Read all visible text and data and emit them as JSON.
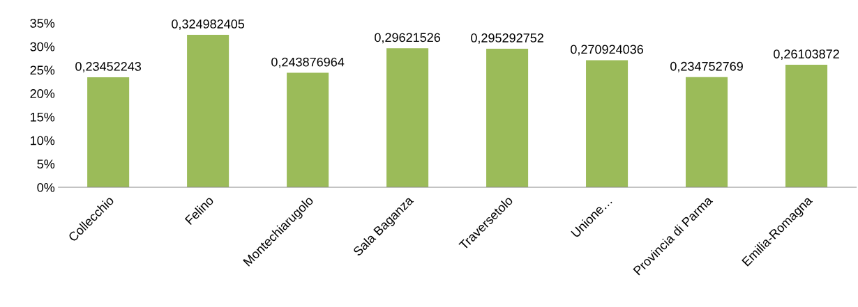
{
  "chart_data": {
    "type": "bar",
    "categories": [
      "Collecchio",
      "Felino",
      "Montechiarugolo",
      "Sala Baganza",
      "Traversetolo",
      "Unione…",
      "Provincia di Parma",
      "Emilia-Romagna"
    ],
    "values": [
      0.23452243,
      0.324982405,
      0.243876964,
      0.29621526,
      0.295292752,
      0.270924036,
      0.234752769,
      0.26103872
    ],
    "value_labels": [
      "0,23452243",
      "0,324982405",
      "0,243876964",
      "0,29621526",
      "0,295292752",
      "0,270924036",
      "0,234752769",
      "0,26103872"
    ],
    "color": "#9bbb59",
    "ylim": [
      0,
      0.35
    ],
    "yticks": [
      {
        "value": 0,
        "label": "0%"
      },
      {
        "value": 0.05,
        "label": "5%"
      },
      {
        "value": 0.1,
        "label": "10%"
      },
      {
        "value": 0.15,
        "label": "15%"
      },
      {
        "value": 0.2,
        "label": "20%"
      },
      {
        "value": 0.25,
        "label": "25%"
      },
      {
        "value": 0.3,
        "label": "30%"
      },
      {
        "value": 0.35,
        "label": "35%"
      }
    ],
    "grid": false,
    "legend": false
  }
}
